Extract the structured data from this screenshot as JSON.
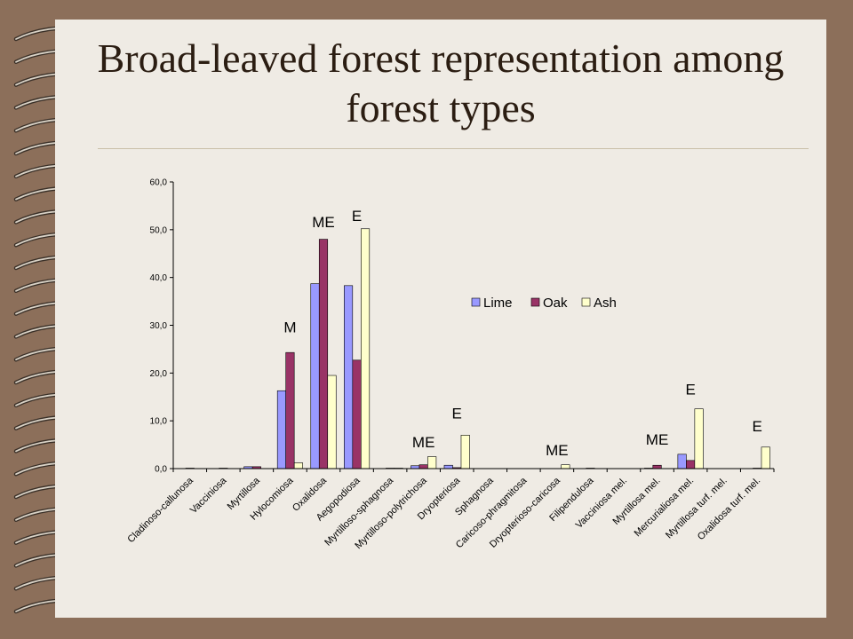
{
  "title": "Broad-leaved forest representation among forest types",
  "colors": {
    "Lime": "#9999ff",
    "Oak": "#993366",
    "Ash": "#ffffcc"
  },
  "chart_data": {
    "type": "bar",
    "title": "",
    "xlabel": "",
    "ylabel": "",
    "ylim": [
      0,
      60
    ],
    "yticks": [
      "0,0",
      "10,0",
      "20,0",
      "30,0",
      "40,0",
      "50,0",
      "60,0"
    ],
    "legend": "inside-right",
    "categories": [
      "Cladinoso-callunosa",
      "Vacciniosa",
      "Myrtillosa",
      "Hylocomiosa",
      "Oxalidosa",
      "Aegopodiosa",
      "Myrtilloso-sphagnosa",
      "Myrtilloso-polytrichosa",
      "Dryopteriosa",
      "Sphagnosa",
      "Caricoso-phragmitosa",
      "Dryopterioso-caricosa",
      "Filipendulosa",
      "Vacciniosa mel.",
      "Myrtillosa mel.",
      "Mercurialiosa mel.",
      "Myrtillosa turf. mel.",
      "Oxalidosa turf. mel."
    ],
    "series": [
      {
        "name": "Lime",
        "values": [
          0.0,
          0.0,
          0.4,
          16.3,
          38.7,
          38.3,
          0.0,
          0.6,
          0.7,
          0.0,
          0.0,
          0.0,
          0.0,
          0.0,
          0.1,
          3.0,
          0.0,
          0.0
        ]
      },
      {
        "name": "Oak",
        "values": [
          0.1,
          0.1,
          0.4,
          24.3,
          48.0,
          22.7,
          0.1,
          0.8,
          0.2,
          0.0,
          0.0,
          0.0,
          0.1,
          0.0,
          0.7,
          1.7,
          0.0,
          0.1
        ]
      },
      {
        "name": "Ash",
        "values": [
          0.0,
          0.0,
          0.0,
          1.2,
          19.5,
          50.2,
          0.1,
          2.5,
          7.0,
          0.0,
          0.0,
          0.8,
          0.0,
          0.0,
          0.0,
          12.5,
          0.0,
          4.5
        ]
      }
    ],
    "annotations": [
      {
        "category": "Hylocomiosa",
        "text": "M",
        "y": 28.5
      },
      {
        "category": "Oxalidosa",
        "text": "ME",
        "y": 50.5
      },
      {
        "category": "Aegopodiosa",
        "text": "E",
        "y": 51.8
      },
      {
        "category": "Myrtilloso-polytrichosa",
        "text": "ME",
        "y": 4.5
      },
      {
        "category": "Dryopteriosa",
        "text": "E",
        "y": 10.5
      },
      {
        "category": "Dryopterioso-caricosa",
        "text": "ME",
        "y": 2.8
      },
      {
        "category": "Myrtillosa mel.",
        "text": "ME",
        "y": 5.0
      },
      {
        "category": "Mercurialiosa mel.",
        "text": "E",
        "y": 15.5
      },
      {
        "category": "Oxalidosa turf. mel.",
        "text": "E",
        "y": 7.8
      }
    ]
  }
}
